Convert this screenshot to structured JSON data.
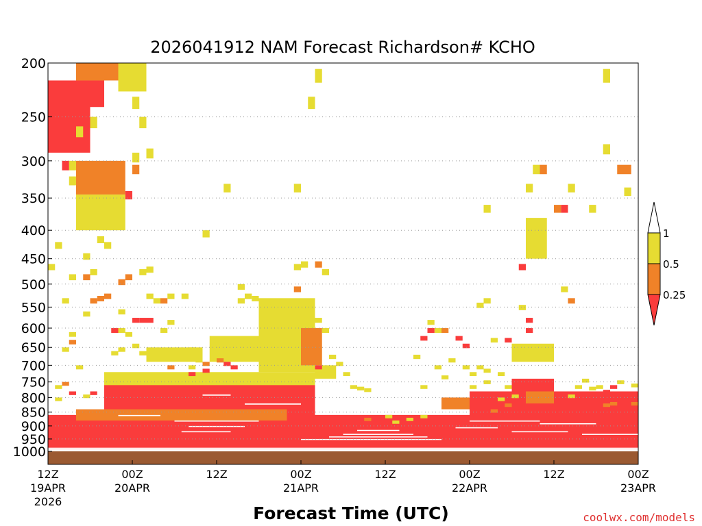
{
  "chart_data": {
    "type": "heatmap",
    "title": "2026041912 NAM Forecast Richardson# KCHO",
    "xlabel": "Forecast Time (UTC)",
    "ylabel": "",
    "credit": "coolwx.com/models",
    "x_unit": "forecast hours",
    "xlim": [
      0,
      84
    ],
    "ylim": [
      1000,
      200
    ],
    "y_ticks": [
      200,
      250,
      300,
      350,
      400,
      450,
      500,
      550,
      600,
      650,
      700,
      750,
      800,
      850,
      900,
      950,
      1000
    ],
    "x_ticks": [
      {
        "hour": 0,
        "line1": "12Z",
        "line2": "19APR",
        "line3": "2026"
      },
      {
        "hour": 12,
        "line1": "00Z",
        "line2": "20APR",
        "line3": ""
      },
      {
        "hour": 24,
        "line1": "12Z",
        "line2": "",
        "line3": ""
      },
      {
        "hour": 36,
        "line1": "00Z",
        "line2": "21APR",
        "line3": ""
      },
      {
        "hour": 48,
        "line1": "12Z",
        "line2": "",
        "line3": ""
      },
      {
        "hour": 60,
        "line1": "00Z",
        "line2": "22APR",
        "line3": ""
      },
      {
        "hour": 72,
        "line1": "12Z",
        "line2": "",
        "line3": ""
      },
      {
        "hour": 84,
        "line1": "00Z",
        "line2": "23APR",
        "line3": ""
      }
    ],
    "gridlines": "dotted horizontal at each pressure tick",
    "legend": {
      "position": "right",
      "labels": [
        "1",
        "0.5",
        "0.25"
      ],
      "bins": [
        {
          "range": ">1",
          "color": "#ffffff"
        },
        {
          "range": "0.5-1",
          "color": "#e6dc32"
        },
        {
          "range": "0.25-0.5",
          "color": "#f08228"
        },
        {
          "range": "<0.25",
          "color": "#fa3c3c"
        }
      ]
    },
    "ground_level": {
      "from_hpa": 1000,
      "color": "#9b5a32"
    },
    "cell_size": {
      "hours": 1,
      "hpa": 12
    },
    "regions": [
      {
        "c": "#fa3c3c",
        "t0": 0,
        "t1": 84,
        "p0": 860,
        "p1": 990
      },
      {
        "c": "#fa3c3c",
        "t0": 8,
        "t1": 38,
        "p0": 740,
        "p1": 870
      },
      {
        "c": "#fa3c3c",
        "t0": 60,
        "t1": 84,
        "p0": 780,
        "p1": 870
      },
      {
        "c": "#f08228",
        "t0": 4,
        "t1": 34,
        "p0": 840,
        "p1": 880
      },
      {
        "c": "#e6dc32",
        "t0": 8,
        "t1": 38,
        "p0": 720,
        "p1": 760
      },
      {
        "c": "#e6dc32",
        "t0": 30,
        "t1": 38,
        "p0": 530,
        "p1": 720
      },
      {
        "c": "#f08228",
        "t0": 36,
        "t1": 39,
        "p0": 600,
        "p1": 700
      },
      {
        "c": "#e6dc32",
        "t0": 23,
        "t1": 35,
        "p0": 620,
        "p1": 690
      },
      {
        "c": "#e6dc32",
        "t0": 14,
        "t1": 22,
        "p0": 650,
        "p1": 690
      },
      {
        "c": "#fa3c3c",
        "t0": 0,
        "t1": 6,
        "p0": 215,
        "p1": 290
      },
      {
        "c": "#fa3c3c",
        "t0": 6,
        "t1": 8,
        "p0": 215,
        "p1": 240
      },
      {
        "c": "#f08228",
        "t0": 4,
        "t1": 11,
        "p0": 300,
        "p1": 345
      },
      {
        "c": "#e6dc32",
        "t0": 4,
        "t1": 11,
        "p0": 345,
        "p1": 400
      },
      {
        "c": "#f08228",
        "t0": 4,
        "t1": 10,
        "p0": 200,
        "p1": 215
      },
      {
        "c": "#e6dc32",
        "t0": 10,
        "t1": 14,
        "p0": 200,
        "p1": 225
      },
      {
        "c": "#e6dc32",
        "t0": 66,
        "t1": 72,
        "p0": 640,
        "p1": 690
      },
      {
        "c": "#fa3c3c",
        "t0": 66,
        "t1": 72,
        "p0": 740,
        "p1": 790
      },
      {
        "c": "#f08228",
        "t0": 68,
        "t1": 72,
        "p0": 780,
        "p1": 820
      },
      {
        "c": "#e6dc32",
        "t0": 68,
        "t1": 71,
        "p0": 380,
        "p1": 450
      },
      {
        "c": "#e6dc32",
        "t0": 38,
        "t1": 41,
        "p0": 700,
        "p1": 740
      },
      {
        "c": "#f08228",
        "t0": 56,
        "t1": 60,
        "p0": 800,
        "p1": 840
      }
    ],
    "cells": [
      {
        "c": "#e6dc32",
        "t": 38,
        "p": 205
      },
      {
        "c": "#e6dc32",
        "t": 37,
        "p": 230
      },
      {
        "c": "#e6dc32",
        "t": 79,
        "p": 205
      },
      {
        "c": "#e6dc32",
        "t": 79,
        "p": 280
      },
      {
        "c": "#f08228",
        "t": 81,
        "p": 305
      },
      {
        "c": "#f08228",
        "t": 82,
        "p": 305
      },
      {
        "c": "#e6dc32",
        "t": 82,
        "p": 335
      },
      {
        "c": "#e6dc32",
        "t": 25,
        "p": 330
      },
      {
        "c": "#e6dc32",
        "t": 35,
        "p": 330
      },
      {
        "c": "#e6dc32",
        "t": 12,
        "p": 290
      },
      {
        "c": "#f08228",
        "t": 12,
        "p": 305
      },
      {
        "c": "#e6dc32",
        "t": 62,
        "p": 360
      },
      {
        "c": "#e6dc32",
        "t": 69,
        "p": 305
      },
      {
        "c": "#f08228",
        "t": 70,
        "p": 305
      },
      {
        "c": "#e6dc32",
        "t": 68,
        "p": 330
      },
      {
        "c": "#fa3c3c",
        "t": 73,
        "p": 360
      },
      {
        "c": "#f08228",
        "t": 72,
        "p": 360
      },
      {
        "c": "#e6dc32",
        "t": 74,
        "p": 330
      },
      {
        "c": "#e6dc32",
        "t": 77,
        "p": 360
      },
      {
        "c": "#fa3c3c",
        "t": 67,
        "p": 460
      },
      {
        "c": "#e6dc32",
        "t": 73,
        "p": 505
      },
      {
        "c": "#f08228",
        "t": 74,
        "p": 530
      },
      {
        "c": "#e6dc32",
        "t": 62,
        "p": 530
      },
      {
        "c": "#e6dc32",
        "t": 61,
        "p": 540
      },
      {
        "c": "#fa3c3c",
        "t": 68,
        "p": 575
      },
      {
        "c": "#fa3c3c",
        "t": 68,
        "p": 600
      },
      {
        "c": "#e6dc32",
        "t": 67,
        "p": 545
      },
      {
        "c": "#fa3c3c",
        "t": 58,
        "p": 620
      },
      {
        "c": "#fa3c3c",
        "t": 59,
        "p": 640
      },
      {
        "c": "#e6dc32",
        "t": 63,
        "p": 625
      },
      {
        "c": "#fa3c3c",
        "t": 65,
        "p": 625
      },
      {
        "c": "#f08228",
        "t": 56,
        "p": 600
      },
      {
        "c": "#e6dc32",
        "t": 55,
        "p": 600
      },
      {
        "c": "#fa3c3c",
        "t": 53,
        "p": 620
      },
      {
        "c": "#fa3c3c",
        "t": 54,
        "p": 600
      },
      {
        "c": "#e6dc32",
        "t": 54,
        "p": 580
      },
      {
        "c": "#e6dc32",
        "t": 55,
        "p": 700
      },
      {
        "c": "#e6dc32",
        "t": 56,
        "p": 730
      },
      {
        "c": "#e6dc32",
        "t": 57,
        "p": 680
      },
      {
        "c": "#e6dc32",
        "t": 52,
        "p": 670
      },
      {
        "c": "#e6dc32",
        "t": 53,
        "p": 760
      },
      {
        "c": "#e6dc32",
        "t": 59,
        "p": 700
      },
      {
        "c": "#e6dc32",
        "t": 60,
        "p": 720
      },
      {
        "c": "#e6dc32",
        "t": 61,
        "p": 700
      },
      {
        "c": "#e6dc32",
        "t": 62,
        "p": 710
      },
      {
        "c": "#e6dc32",
        "t": 62,
        "p": 745
      },
      {
        "c": "#e6dc32",
        "t": 60,
        "p": 760
      },
      {
        "c": "#e6dc32",
        "t": 64,
        "p": 720
      },
      {
        "c": "#e6dc32",
        "t": 65,
        "p": 760
      },
      {
        "c": "#e6dc32",
        "t": 75,
        "p": 760
      },
      {
        "c": "#e6dc32",
        "t": 76,
        "p": 740
      },
      {
        "c": "#e6dc32",
        "t": 77,
        "p": 765
      },
      {
        "c": "#e6dc32",
        "t": 78,
        "p": 760
      },
      {
        "c": "#e6dc32",
        "t": 81,
        "p": 745
      },
      {
        "c": "#e6dc32",
        "t": 83,
        "p": 755
      },
      {
        "c": "#fa3c3c",
        "t": 84,
        "p": 770
      },
      {
        "c": "#fa3c3c",
        "t": 79,
        "p": 775
      },
      {
        "c": "#fa3c3c",
        "t": 80,
        "p": 760
      },
      {
        "c": "#fa3c3c",
        "t": 82,
        "p": 805
      },
      {
        "c": "#f08228",
        "t": 83,
        "p": 815
      },
      {
        "c": "#f08228",
        "t": 79,
        "p": 820
      },
      {
        "c": "#f08228",
        "t": 80,
        "p": 815
      },
      {
        "c": "#fa3c3c",
        "t": 77,
        "p": 800
      },
      {
        "c": "#fa3c3c",
        "t": 78,
        "p": 810
      },
      {
        "c": "#e6dc32",
        "t": 74,
        "p": 790
      },
      {
        "c": "#e6dc32",
        "t": 2,
        "p": 650
      },
      {
        "c": "#e6dc32",
        "t": 3,
        "p": 610
      },
      {
        "c": "#f08228",
        "t": 3,
        "p": 630
      },
      {
        "c": "#e6dc32",
        "t": 4,
        "p": 700
      },
      {
        "c": "#e6dc32",
        "t": 5,
        "p": 560
      },
      {
        "c": "#e6dc32",
        "t": 6,
        "p": 470
      },
      {
        "c": "#f08228",
        "t": 5,
        "p": 480
      },
      {
        "c": "#e6dc32",
        "t": 3,
        "p": 480
      },
      {
        "c": "#e6dc32",
        "t": 2,
        "p": 530
      },
      {
        "c": "#f08228",
        "t": 6,
        "p": 530
      },
      {
        "c": "#f08228",
        "t": 7,
        "p": 525
      },
      {
        "c": "#f08228",
        "t": 8,
        "p": 520
      },
      {
        "c": "#fa3c3c",
        "t": 9,
        "p": 600
      },
      {
        "c": "#fa3c3c",
        "t": 12,
        "p": 575
      },
      {
        "c": "#fa3c3c",
        "t": 13,
        "p": 575
      },
      {
        "c": "#fa3c3c",
        "t": 14,
        "p": 575
      },
      {
        "c": "#e6dc32",
        "t": 10,
        "p": 600
      },
      {
        "c": "#e6dc32",
        "t": 11,
        "p": 610
      },
      {
        "c": "#f08228",
        "t": 10,
        "p": 490
      },
      {
        "c": "#f08228",
        "t": 11,
        "p": 480
      },
      {
        "c": "#e6dc32",
        "t": 10,
        "p": 555
      },
      {
        "c": "#e6dc32",
        "t": 13,
        "p": 470
      },
      {
        "c": "#e6dc32",
        "t": 14,
        "p": 465
      },
      {
        "c": "#e6dc32",
        "t": 9,
        "p": 660
      },
      {
        "c": "#e6dc32",
        "t": 10,
        "p": 650
      },
      {
        "c": "#e6dc32",
        "t": 12,
        "p": 640
      },
      {
        "c": "#e6dc32",
        "t": 13,
        "p": 660
      },
      {
        "c": "#e6dc32",
        "t": 14,
        "p": 520
      },
      {
        "c": "#e6dc32",
        "t": 15,
        "p": 530
      },
      {
        "c": "#f08228",
        "t": 16,
        "p": 530
      },
      {
        "c": "#e6dc32",
        "t": 17,
        "p": 520
      },
      {
        "c": "#e6dc32",
        "t": 19,
        "p": 520
      },
      {
        "c": "#e6dc32",
        "t": 16,
        "p": 600
      },
      {
        "c": "#e6dc32",
        "t": 17,
        "p": 580
      },
      {
        "c": "#e6dc32",
        "t": 20,
        "p": 650
      },
      {
        "c": "#e6dc32",
        "t": 21,
        "p": 680
      },
      {
        "c": "#f08228",
        "t": 22,
        "p": 690
      },
      {
        "c": "#e6dc32",
        "t": 20,
        "p": 700
      },
      {
        "c": "#e6dc32",
        "t": 27,
        "p": 530
      },
      {
        "c": "#e6dc32",
        "t": 28,
        "p": 520
      },
      {
        "c": "#e6dc32",
        "t": 29,
        "p": 525
      },
      {
        "c": "#f08228",
        "t": 35,
        "p": 505
      },
      {
        "c": "#e6dc32",
        "t": 35,
        "p": 460
      },
      {
        "c": "#e6dc32",
        "t": 36,
        "p": 455
      },
      {
        "c": "#f08228",
        "t": 38,
        "p": 455
      },
      {
        "c": "#e6dc32",
        "t": 39,
        "p": 470
      },
      {
        "c": "#e6dc32",
        "t": 38,
        "p": 575
      },
      {
        "c": "#e6dc32",
        "t": 39,
        "p": 600
      },
      {
        "c": "#e6dc32",
        "t": 40,
        "p": 670
      },
      {
        "c": "#e6dc32",
        "t": 41,
        "p": 690
      },
      {
        "c": "#e6dc32",
        "t": 42,
        "p": 720
      },
      {
        "c": "#e6dc32",
        "t": 43,
        "p": 760
      },
      {
        "c": "#e6dc32",
        "t": 44,
        "p": 765
      },
      {
        "c": "#e6dc32",
        "t": 45,
        "p": 770
      },
      {
        "c": "#fa3c3c",
        "t": 38,
        "p": 700
      },
      {
        "c": "#f08228",
        "t": 24,
        "p": 680
      },
      {
        "c": "#fa3c3c",
        "t": 25,
        "p": 690
      },
      {
        "c": "#fa3c3c",
        "t": 26,
        "p": 700
      },
      {
        "c": "#fa3c3c",
        "t": 22,
        "p": 710
      },
      {
        "c": "#fa3c3c",
        "t": 20,
        "p": 720
      },
      {
        "c": "#f08228",
        "t": 17,
        "p": 700
      },
      {
        "c": "#e6dc32",
        "t": 18,
        "p": 730
      },
      {
        "c": "#e6dc32",
        "t": 1,
        "p": 760
      },
      {
        "c": "#f08228",
        "t": 2,
        "p": 750
      },
      {
        "c": "#fa3c3c",
        "t": 3,
        "p": 780
      },
      {
        "c": "#e6dc32",
        "t": 1,
        "p": 800
      },
      {
        "c": "#e6dc32",
        "t": 5,
        "p": 790
      },
      {
        "c": "#fa3c3c",
        "t": 6,
        "p": 780
      },
      {
        "c": "#e6dc32",
        "t": 0,
        "p": 460
      },
      {
        "c": "#e6dc32",
        "t": 1,
        "p": 420
      },
      {
        "c": "#e6dc32",
        "t": 4,
        "p": 380
      },
      {
        "c": "#e6dc32",
        "t": 5,
        "p": 440
      },
      {
        "c": "#e6dc32",
        "t": 7,
        "p": 410
      },
      {
        "c": "#e6dc32",
        "t": 8,
        "p": 420
      },
      {
        "c": "#e6dc32",
        "t": 12,
        "p": 230
      },
      {
        "c": "#e6dc32",
        "t": 13,
        "p": 250
      },
      {
        "c": "#e6dc32",
        "t": 14,
        "p": 285
      },
      {
        "c": "#e6dc32",
        "t": 3,
        "p": 300
      },
      {
        "c": "#fa3c3c",
        "t": 2,
        "p": 300
      },
      {
        "c": "#e6dc32",
        "t": 3,
        "p": 320
      },
      {
        "c": "#e6dc32",
        "t": 4,
        "p": 260
      },
      {
        "c": "#e6dc32",
        "t": 6,
        "p": 250
      },
      {
        "c": "#fa3c3c",
        "t": 11,
        "p": 340
      },
      {
        "c": "#e6dc32",
        "t": 22,
        "p": 400
      },
      {
        "c": "#e6dc32",
        "t": 27,
        "p": 500
      },
      {
        "c": "#fa3c3c",
        "t": 46,
        "p": 880
      },
      {
        "c": "#fa3c3c",
        "t": 48,
        "p": 900
      },
      {
        "c": "#fa3c3c",
        "t": 50,
        "p": 930
      },
      {
        "c": "#fa3c3c",
        "t": 52,
        "p": 880
      },
      {
        "c": "#e6dc32",
        "t": 49,
        "p": 880
      },
      {
        "c": "#e6dc32",
        "t": 51,
        "p": 870
      },
      {
        "c": "#e6dc32",
        "t": 53,
        "p": 860
      },
      {
        "c": "#e6dc32",
        "t": 48,
        "p": 860
      },
      {
        "c": "#f08228",
        "t": 45,
        "p": 870
      },
      {
        "c": "#e6dc32",
        "t": 66,
        "p": 790
      },
      {
        "c": "#e6dc32",
        "t": 64,
        "p": 800
      },
      {
        "c": "#f08228",
        "t": 65,
        "p": 820
      },
      {
        "c": "#f08228",
        "t": 63,
        "p": 840
      }
    ],
    "white_gaps": [
      {
        "t0": 18,
        "t1": 30,
        "p": 880
      },
      {
        "t0": 20,
        "t1": 28,
        "p": 900
      },
      {
        "t0": 19,
        "t1": 26,
        "p": 920
      },
      {
        "t0": 36,
        "t1": 56,
        "p": 950
      },
      {
        "t0": 40,
        "t1": 54,
        "p": 940
      },
      {
        "t0": 42,
        "t1": 52,
        "p": 930
      },
      {
        "t0": 44,
        "t1": 50,
        "p": 915
      },
      {
        "t0": 46,
        "t1": 50,
        "p": 990
      },
      {
        "t0": 60,
        "t1": 70,
        "p": 880
      },
      {
        "t0": 58,
        "t1": 64,
        "p": 905
      },
      {
        "t0": 66,
        "t1": 74,
        "p": 920
      },
      {
        "t0": 0,
        "t1": 84,
        "p": 985
      },
      {
        "t0": 10,
        "t1": 16,
        "p": 860
      },
      {
        "t0": 28,
        "t1": 36,
        "p": 820
      },
      {
        "t0": 40,
        "t1": 44,
        "p": 780
      },
      {
        "t0": 22,
        "t1": 26,
        "p": 790
      },
      {
        "t0": 70,
        "t1": 78,
        "p": 890
      },
      {
        "t0": 76,
        "t1": 84,
        "p": 930
      }
    ]
  }
}
